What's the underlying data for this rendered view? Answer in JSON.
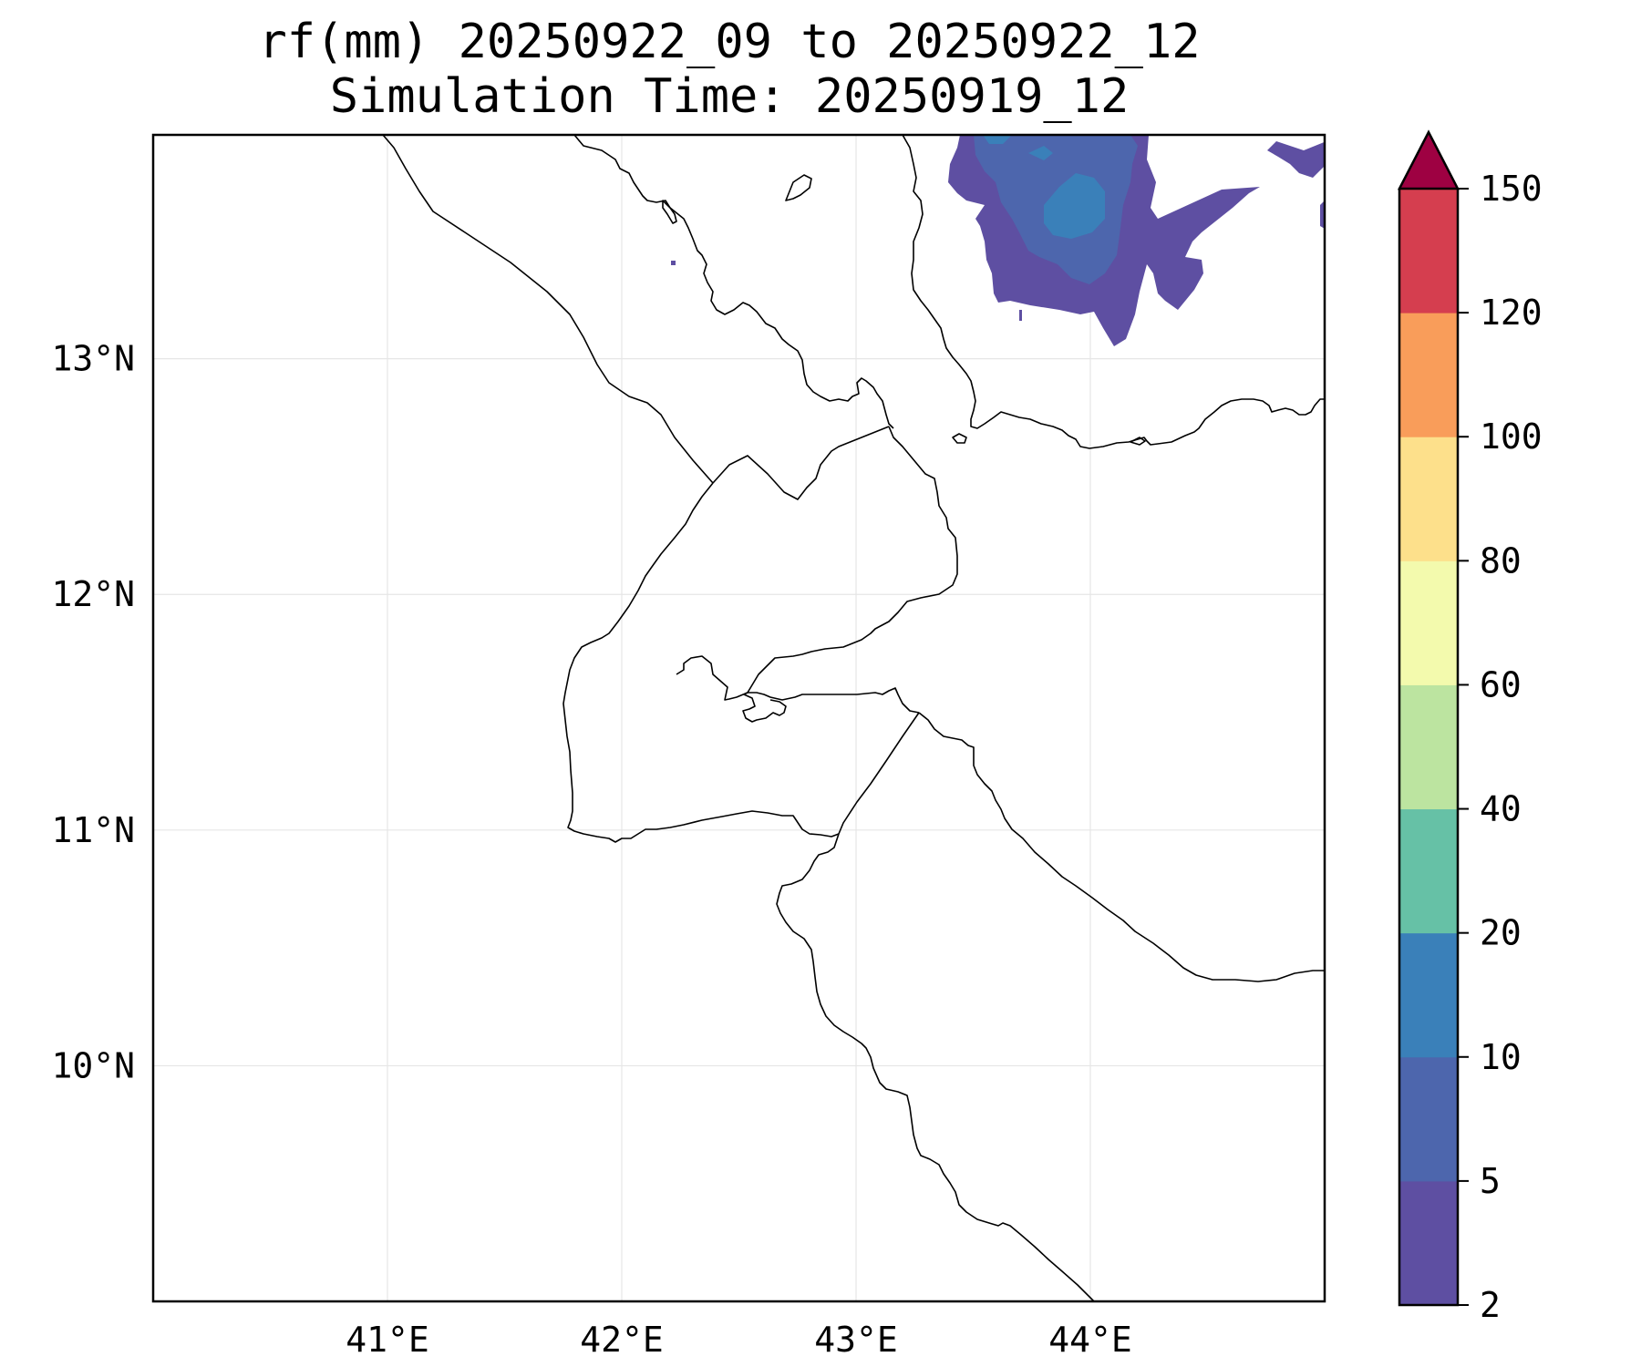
{
  "title": {
    "line1": "rf(mm) 20250922_09 to 20250922_12",
    "line2": "Simulation Time: 20250919_12"
  },
  "map": {
    "lon_range": [
      40.0,
      45.0
    ],
    "lat_range": [
      9.0,
      13.95
    ],
    "x_ticks": [
      {
        "value": 41,
        "label": "41°E"
      },
      {
        "value": 42,
        "label": "42°E"
      },
      {
        "value": 43,
        "label": "43°E"
      },
      {
        "value": 44,
        "label": "44°E"
      }
    ],
    "y_ticks": [
      {
        "value": 13,
        "label": "13°N"
      },
      {
        "value": 12,
        "label": "12°N"
      },
      {
        "value": 11,
        "label": "11°N"
      },
      {
        "value": 10,
        "label": "10°N"
      }
    ],
    "gridlines": true
  },
  "colorbar": {
    "levels": [
      2,
      5,
      10,
      20,
      40,
      60,
      80,
      100,
      120,
      150
    ],
    "labels": [
      "2",
      "5",
      "10",
      "20",
      "40",
      "60",
      "80",
      "100",
      "120",
      "150"
    ],
    "colors": [
      "#5e4fa2",
      "#4d66ad",
      "#3a80b9",
      "#66c1a6",
      "#bce4a0",
      "#f3faad",
      "#fde08b",
      "#f99d5a",
      "#d53e4f"
    ],
    "extend_color": "#9e0142",
    "extend": "max"
  },
  "chart_data": {
    "type": "heatmap",
    "title": "rf(mm) 20250922_09 to 20250922_12\nSimulation Time: 20250919_12",
    "variable": "rf(mm)",
    "x_range": [
      40.0,
      45.0
    ],
    "y_range": [
      9.0,
      13.95
    ],
    "legend": "colorbar-right",
    "rain_areas": [
      {
        "category": "2-5 mm",
        "region": "northeast corner, over Yemen highlands",
        "lon": [
          43.4,
          44.5
        ],
        "lat": [
          13.05,
          13.95
        ]
      },
      {
        "category": "5-10 mm",
        "region": "embedded cores",
        "lon": [
          43.7,
          44.3
        ],
        "lat": [
          13.3,
          13.9
        ]
      },
      {
        "category": "10-20 mm",
        "region": "small cores near 43.9E 13.7N",
        "lon": [
          43.8,
          44.05
        ],
        "lat": [
          13.55,
          13.75
        ]
      },
      {
        "category": "2-5 mm",
        "region": "far northeast edge",
        "lon": [
          44.75,
          45.0
        ],
        "lat": [
          13.35,
          13.95
        ]
      }
    ]
  }
}
